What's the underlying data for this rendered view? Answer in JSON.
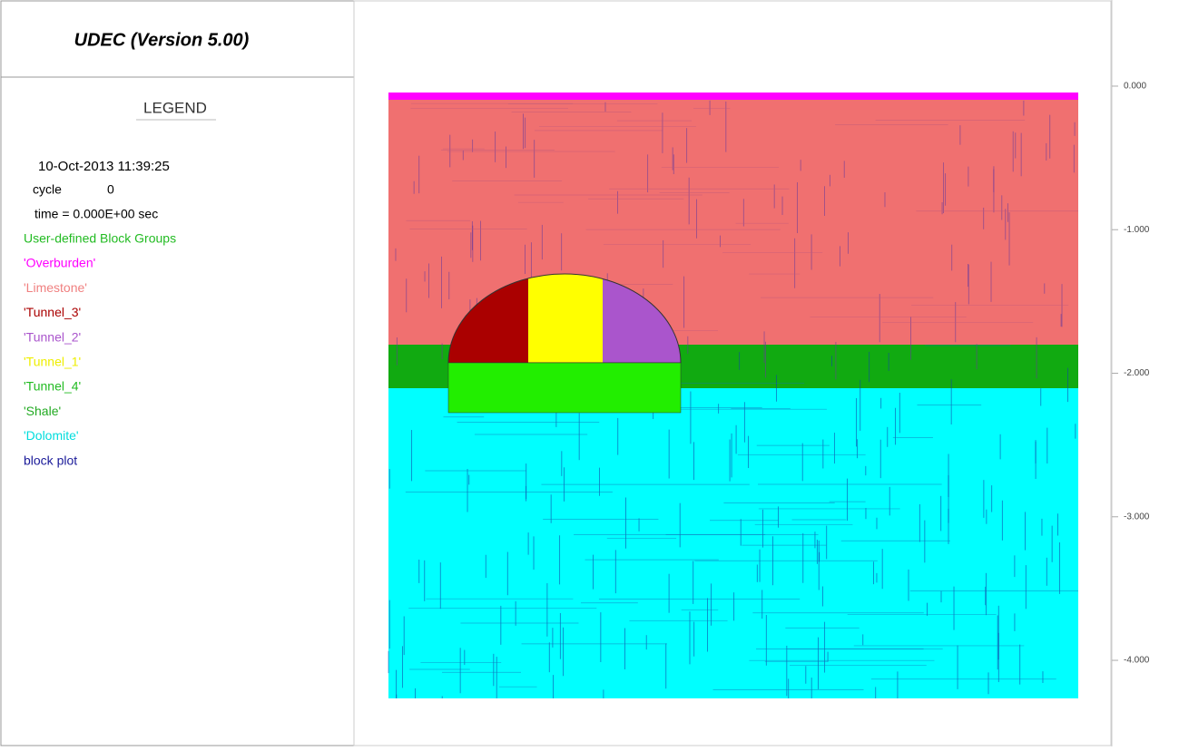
{
  "header": {
    "title": "UDEC (Version 5.00)"
  },
  "legend": {
    "heading": "LEGEND",
    "date": "10-Oct-2013  11:39:25",
    "cycle_label": "cycle",
    "cycle_value": "0",
    "time": "time  =  0.000E+00 sec",
    "groups_heading": "User-defined Block Groups",
    "groups": [
      "'Overburden'",
      "'Limestone'",
      "'Tunnel_3'",
      "'Tunnel_2'",
      "'Tunnel_1'",
      "'Tunnel_4'",
      "'Shale'",
      "'Dolomite'"
    ],
    "plot_item": "block plot"
  },
  "axis": {
    "ylim": [
      -4.6,
      0.6
    ],
    "yticks": [
      {
        "value": 0,
        "label": "0.000"
      },
      {
        "value": -1,
        "label": "-1.000"
      },
      {
        "value": -2,
        "label": "-2.000"
      },
      {
        "value": -3,
        "label": "-3.000"
      },
      {
        "value": -4,
        "label": "-4.000"
      }
    ]
  }
}
